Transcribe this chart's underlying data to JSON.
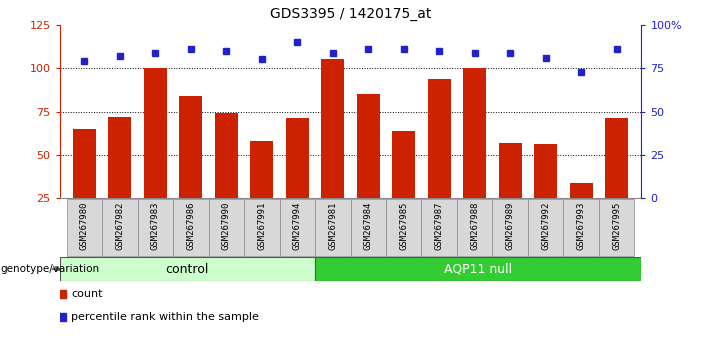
{
  "title": "GDS3395 / 1420175_at",
  "samples": [
    "GSM267980",
    "GSM267982",
    "GSM267983",
    "GSM267986",
    "GSM267990",
    "GSM267991",
    "GSM267994",
    "GSM267981",
    "GSM267984",
    "GSM267985",
    "GSM267987",
    "GSM267988",
    "GSM267989",
    "GSM267992",
    "GSM267993",
    "GSM267995"
  ],
  "counts": [
    65,
    72,
    100,
    84,
    74,
    58,
    71,
    105,
    85,
    64,
    94,
    100,
    57,
    56,
    34,
    71
  ],
  "percentiles": [
    79,
    82,
    84,
    86,
    85,
    80,
    90,
    84,
    86,
    86,
    85,
    84,
    84,
    81,
    73,
    86
  ],
  "groups": [
    "control",
    "control",
    "control",
    "control",
    "control",
    "control",
    "control",
    "AQP11 null",
    "AQP11 null",
    "AQP11 null",
    "AQP11 null",
    "AQP11 null",
    "AQP11 null",
    "AQP11 null",
    "AQP11 null",
    "AQP11 null"
  ],
  "bar_color": "#cc2200",
  "dot_color": "#2222cc",
  "ylim_left": [
    25,
    125
  ],
  "ylim_right": [
    0,
    100
  ],
  "yticks_left": [
    25,
    50,
    75,
    100,
    125
  ],
  "yticks_right": [
    0,
    25,
    50,
    75,
    100
  ],
  "ytick_labels_right": [
    "0",
    "25",
    "50",
    "75",
    "100%"
  ],
  "control_color": "#ccffcc",
  "aqp11_color": "#33cc33",
  "xlabel_area": "genotype/variation",
  "legend_count": "count",
  "legend_pct": "percentile rank within the sample",
  "control_label": "control",
  "aqp11_label": "AQP11 null",
  "n_control": 7,
  "n_aqp11": 9,
  "plot_bg": "#ffffff",
  "tick_box_bg": "#d8d8d8",
  "tick_box_border": "#888888"
}
